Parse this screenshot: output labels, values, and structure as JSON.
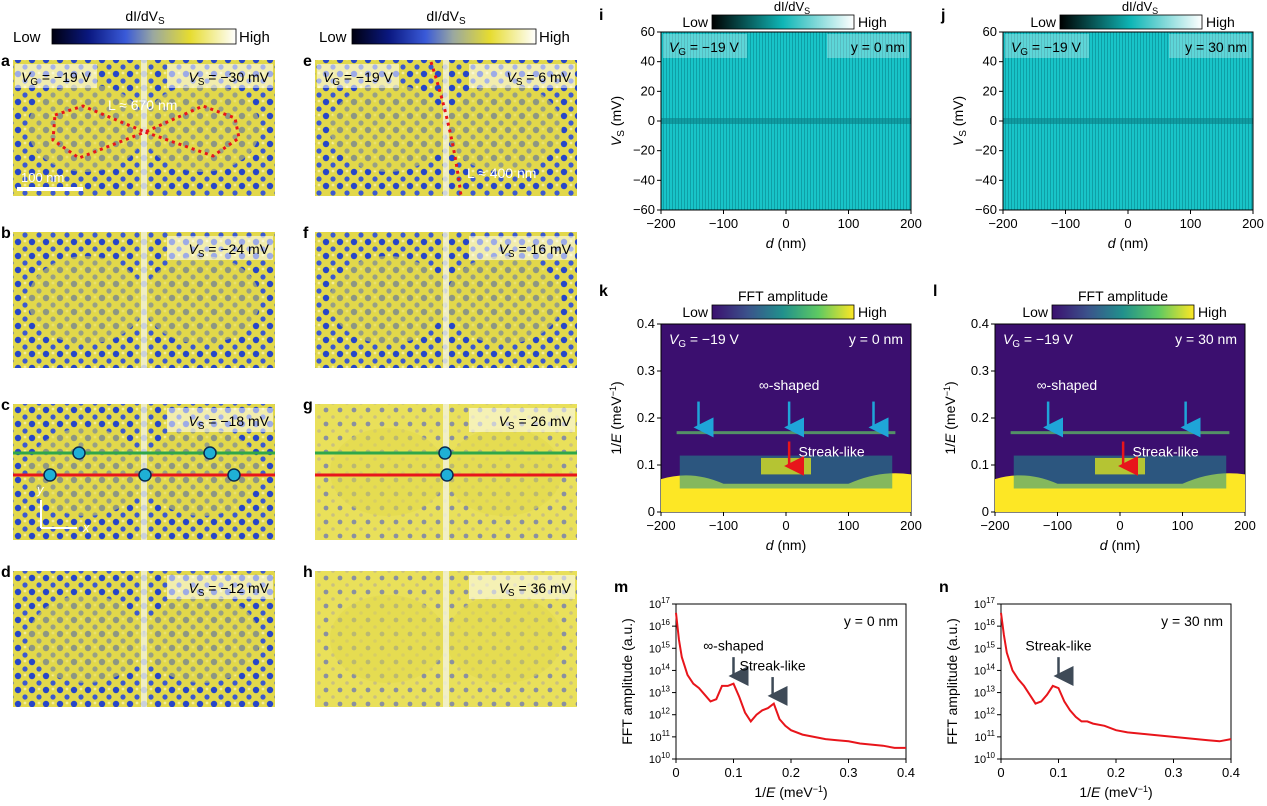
{
  "colorbars": {
    "didv_left": {
      "title": "dI/dV",
      "title_sub": "S",
      "low": "Low",
      "high": "High"
    },
    "didv_mid": {
      "title": "dI/dV",
      "title_sub": "S",
      "low": "Low",
      "high": "High"
    },
    "didv_i": {
      "title": "dI/dV",
      "title_sub": "S",
      "low": "Low",
      "high": "High"
    },
    "didv_j": {
      "title": "dI/dV",
      "title_sub": "S",
      "low": "Low",
      "high": "High"
    },
    "fft_k": {
      "title": "FFT amplitude",
      "low": "Low",
      "high": "High"
    },
    "fft_l": {
      "title": "FFT amplitude",
      "low": "Low",
      "high": "High"
    }
  },
  "maps": [
    {
      "letter": "a",
      "vg": "V",
      "vg_sub": "G",
      "vg_val": " = −19 V",
      "vs": "V",
      "vs_sub": "S",
      "vs_val": " = −30 mV",
      "annot": "L ≈ 670 nm",
      "scale": "100 nm"
    },
    {
      "letter": "b",
      "vs": "V",
      "vs_sub": "S",
      "vs_val": " = −24 mV"
    },
    {
      "letter": "c",
      "vs": "V",
      "vs_sub": "S",
      "vs_val": " = −18 mV",
      "axis_y": "y",
      "axis_x": "x"
    },
    {
      "letter": "d",
      "vs": "V",
      "vs_sub": "S",
      "vs_val": " = −12 mV"
    },
    {
      "letter": "e",
      "vg": "V",
      "vg_sub": "G",
      "vg_val": " = −19 V",
      "vs": "V",
      "vs_sub": "S",
      "vs_val": " = 6 mV",
      "annot": "L ≈ 400 nm"
    },
    {
      "letter": "f",
      "vs": "V",
      "vs_sub": "S",
      "vs_val": " = 16 mV"
    },
    {
      "letter": "g",
      "vs": "V",
      "vs_sub": "S",
      "vs_val": " = 26 mV"
    },
    {
      "letter": "h",
      "vs": "V",
      "vs_sub": "S",
      "vs_val": " = 36 mV"
    }
  ],
  "chart_data": [
    {
      "id": "i",
      "type": "heatmap",
      "xlabel": "d (nm)",
      "ylabel": "VS (mV)",
      "xlim": [
        -200,
        200
      ],
      "ylim": [
        -60,
        60
      ],
      "xticks": [
        -200,
        -100,
        0,
        100,
        200
      ],
      "yticks": [
        60,
        40,
        20,
        0,
        -20,
        -40,
        -60
      ],
      "annotations": [
        "VG = −19 V",
        "y = 0 nm"
      ]
    },
    {
      "id": "j",
      "type": "heatmap",
      "xlabel": "d (nm)",
      "ylabel": "VS (mV)",
      "xlim": [
        -200,
        200
      ],
      "ylim": [
        -60,
        60
      ],
      "xticks": [
        -200,
        -100,
        0,
        100,
        200
      ],
      "yticks": [
        60,
        40,
        20,
        0,
        -20,
        -40,
        -60
      ],
      "annotations": [
        "VG = −19 V",
        "y = 30 nm"
      ]
    },
    {
      "id": "k",
      "type": "heatmap",
      "xlabel": "d (nm)",
      "ylabel": "1/E (meV−1)",
      "xlim": [
        -200,
        200
      ],
      "ylim": [
        0,
        0.4
      ],
      "xticks": [
        -200,
        -100,
        0,
        100,
        200
      ],
      "yticks": [
        0.4,
        0.3,
        0.2,
        0.1,
        0
      ],
      "annotations": [
        "VG = −19 V",
        "y = 0 nm",
        "∞-shaped",
        "Streak-like"
      ],
      "blue_arrows_d": [
        -140,
        5,
        140
      ],
      "red_arrow_d": 5
    },
    {
      "id": "l",
      "type": "heatmap",
      "xlabel": "d (nm)",
      "ylabel": "1/E (meV−1)",
      "xlim": [
        -200,
        200
      ],
      "ylim": [
        0,
        0.4
      ],
      "xticks": [
        -200,
        -100,
        0,
        100,
        200
      ],
      "yticks": [
        0.4,
        0.3,
        0.2,
        0.1,
        0
      ],
      "annotations": [
        "VG = −19 V",
        "y = 30 nm",
        "∞-shaped",
        "Streak-like"
      ],
      "blue_arrows_d": [
        -115,
        105
      ],
      "red_arrow_d": 5
    },
    {
      "id": "m",
      "type": "line",
      "xlabel": "1/E (meV−1)",
      "ylabel": "FFT amplitude (a.u.)",
      "xlim": [
        0,
        0.4
      ],
      "ylim_log10": [
        10,
        17
      ],
      "xticks": [
        0,
        0.1,
        0.2,
        0.3,
        0.4
      ],
      "yticks": [
        "10",
        "11",
        "12",
        "13",
        "14",
        "15",
        "16",
        "17"
      ],
      "title": "y = 0 nm",
      "series": [
        {
          "name": "FFT",
          "color": "#e8151b",
          "x": [
            0,
            0.005,
            0.01,
            0.02,
            0.03,
            0.04,
            0.05,
            0.06,
            0.07,
            0.08,
            0.09,
            0.1,
            0.11,
            0.12,
            0.13,
            0.14,
            0.15,
            0.16,
            0.17,
            0.18,
            0.19,
            0.2,
            0.22,
            0.24,
            0.26,
            0.28,
            0.3,
            0.32,
            0.34,
            0.36,
            0.38,
            0.4
          ],
          "log10y": [
            16.6,
            15.4,
            14.6,
            13.8,
            13.4,
            13.2,
            12.9,
            12.6,
            12.7,
            13.3,
            13.3,
            13.4,
            12.8,
            12.1,
            11.7,
            12.0,
            12.2,
            12.3,
            12.5,
            11.8,
            11.5,
            11.3,
            11.1,
            11.0,
            10.9,
            10.85,
            10.8,
            10.7,
            10.65,
            10.6,
            10.5,
            10.5
          ]
        }
      ],
      "annotations": [
        {
          "text": "∞-shaped",
          "x": 0.1
        },
        {
          "text": "Streak-like",
          "x": 0.168
        }
      ]
    },
    {
      "id": "n",
      "type": "line",
      "xlabel": "1/E (meV−1)",
      "ylabel": "FFT amplitude (a.u.)",
      "xlim": [
        0,
        0.4
      ],
      "ylim_log10": [
        10,
        17
      ],
      "xticks": [
        0,
        0.1,
        0.2,
        0.3,
        0.4
      ],
      "yticks": [
        "10",
        "11",
        "12",
        "13",
        "14",
        "15",
        "16",
        "17"
      ],
      "title": "y = 30 nm",
      "series": [
        {
          "name": "FFT",
          "color": "#e8151b",
          "x": [
            0,
            0.005,
            0.01,
            0.02,
            0.03,
            0.04,
            0.05,
            0.06,
            0.07,
            0.08,
            0.09,
            0.1,
            0.11,
            0.12,
            0.13,
            0.14,
            0.15,
            0.16,
            0.18,
            0.2,
            0.22,
            0.24,
            0.26,
            0.28,
            0.3,
            0.32,
            0.34,
            0.36,
            0.38,
            0.4
          ],
          "log10y": [
            16.6,
            15.6,
            14.8,
            14.0,
            13.6,
            13.3,
            12.9,
            12.5,
            12.6,
            12.9,
            13.3,
            13.2,
            12.6,
            12.2,
            11.9,
            11.7,
            11.7,
            11.6,
            11.5,
            11.3,
            11.2,
            11.15,
            11.1,
            11.05,
            11.0,
            10.95,
            10.9,
            10.85,
            10.8,
            10.9
          ]
        }
      ],
      "annotations": [
        {
          "text": "Streak-like",
          "x": 0.1
        }
      ]
    }
  ],
  "colors": {
    "accent_red": "#e8151b",
    "accent_blue": "#1fa5d8",
    "line_green": "#2fa74a",
    "dot_fill": "#1fb0d6"
  }
}
